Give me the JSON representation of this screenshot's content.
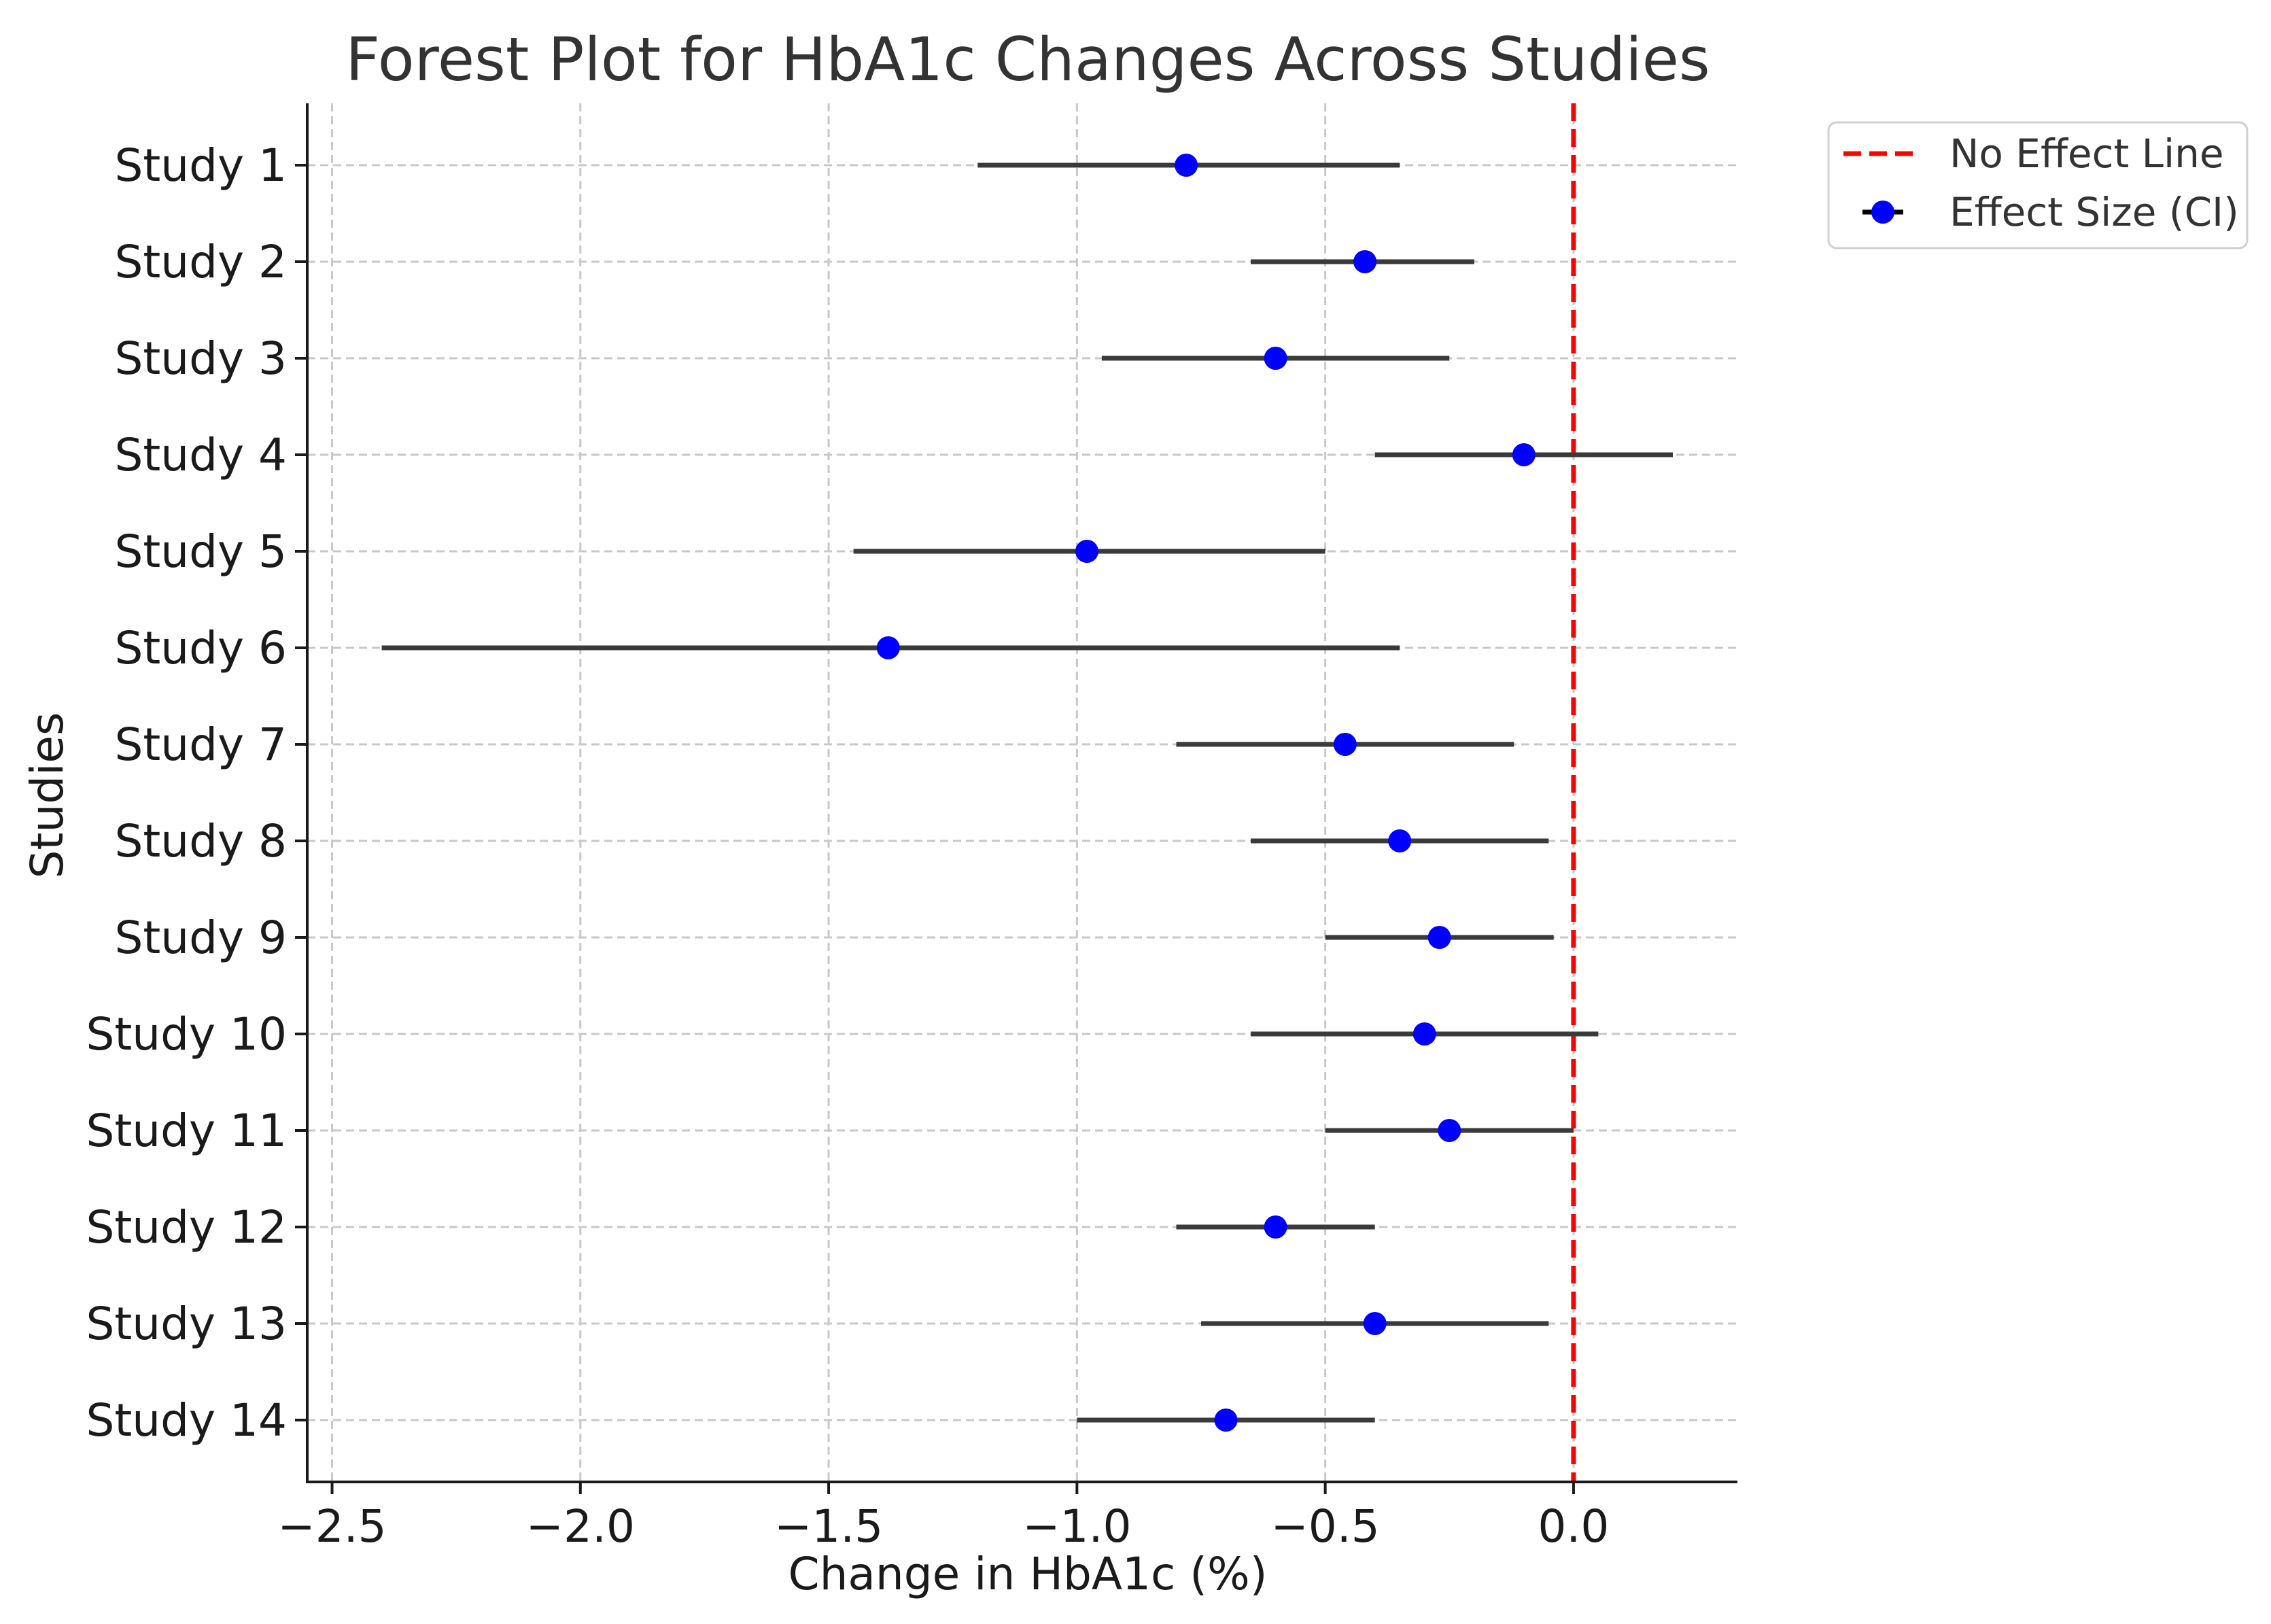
{
  "chart_data": {
    "type": "scatter",
    "subtype": "forest",
    "title": "Forest Plot for HbA1c Changes Across Studies",
    "xlabel": "Change in HbA1c (%)",
    "ylabel": "Studies",
    "xlim": [
      -2.55,
      0.33
    ],
    "xticks": [
      -2.5,
      -2.0,
      -1.5,
      -1.0,
      -0.5,
      0.0
    ],
    "xtick_labels": [
      "−2.5",
      "−2.0",
      "−1.5",
      "−1.0",
      "−0.5",
      "0.0"
    ],
    "grid": true,
    "reference_line": {
      "x": 0.0,
      "label": "No Effect Line",
      "color": "#ff0000",
      "style": "dashed"
    },
    "legend": {
      "position": "outside-top-right",
      "entries": [
        "No Effect Line",
        "Effect Size (CI)"
      ]
    },
    "series_name": "Effect Size (CI)",
    "marker_color": "#0000ff",
    "errorbar_color": "#3a3a3a",
    "studies": [
      {
        "name": "Study 1",
        "effect": -0.78,
        "lower": -1.2,
        "upper": -0.35
      },
      {
        "name": "Study 2",
        "effect": -0.42,
        "lower": -0.65,
        "upper": -0.2
      },
      {
        "name": "Study 3",
        "effect": -0.6,
        "lower": -0.95,
        "upper": -0.25
      },
      {
        "name": "Study 4",
        "effect": -0.1,
        "lower": -0.4,
        "upper": 0.2
      },
      {
        "name": "Study 5",
        "effect": -0.98,
        "lower": -1.45,
        "upper": -0.5
      },
      {
        "name": "Study 6",
        "effect": -1.38,
        "lower": -2.4,
        "upper": -0.35
      },
      {
        "name": "Study 7",
        "effect": -0.46,
        "lower": -0.8,
        "upper": -0.12
      },
      {
        "name": "Study 8",
        "effect": -0.35,
        "lower": -0.65,
        "upper": -0.05
      },
      {
        "name": "Study 9",
        "effect": -0.27,
        "lower": -0.5,
        "upper": -0.04
      },
      {
        "name": "Study 10",
        "effect": -0.3,
        "lower": -0.65,
        "upper": 0.05
      },
      {
        "name": "Study 11",
        "effect": -0.25,
        "lower": -0.5,
        "upper": 0.0
      },
      {
        "name": "Study 12",
        "effect": -0.6,
        "lower": -0.8,
        "upper": -0.4
      },
      {
        "name": "Study 13",
        "effect": -0.4,
        "lower": -0.75,
        "upper": -0.05
      },
      {
        "name": "Study 14",
        "effect": -0.7,
        "lower": -1.0,
        "upper": -0.4
      }
    ]
  }
}
